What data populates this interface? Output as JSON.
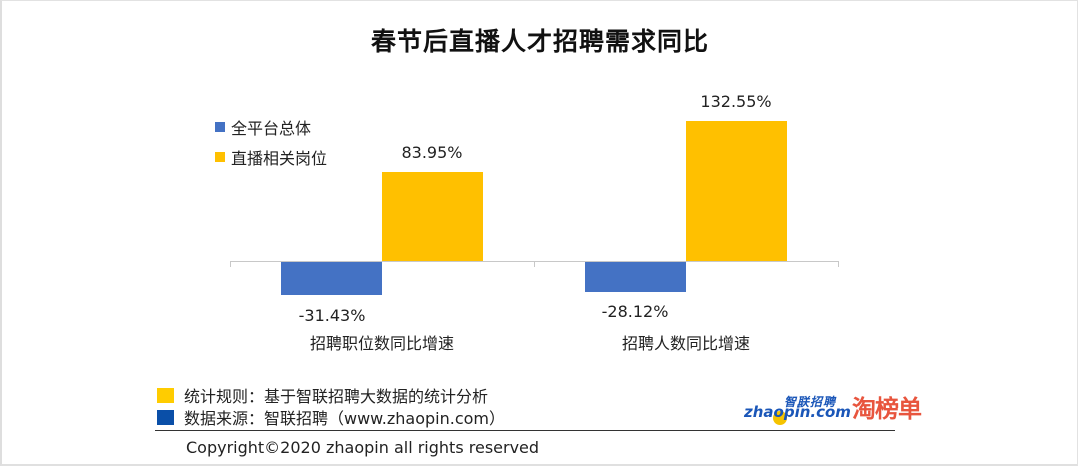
{
  "title": "春节后直播人才招聘需求同比",
  "legend": [
    {
      "label": "全平台总体",
      "color": "#4472c4"
    },
    {
      "label": "直播相关岗位",
      "color": "#ffc000"
    }
  ],
  "chart_data": {
    "type": "bar",
    "title": "春节后直播人才招聘需求同比",
    "categories": [
      "招聘职位数同比增速",
      "招聘人数同比增速"
    ],
    "series": [
      {
        "name": "全平台总体",
        "color": "#4472c4",
        "values": [
          -31.43,
          -28.12
        ],
        "labels": [
          "-31.43%",
          "-28.12%"
        ]
      },
      {
        "name": "直播相关岗位",
        "color": "#ffc000",
        "values": [
          83.95,
          132.55
        ],
        "labels": [
          "83.95%",
          "132.55%"
        ]
      }
    ],
    "xlabel": "",
    "ylabel": "",
    "unit": "%",
    "grid": false,
    "legend_position": "top-left",
    "ylim": [
      -35,
      140
    ]
  },
  "notes": [
    {
      "text": "统计规则：基于智联招聘大数据的统计分析",
      "color": "#ffcc00"
    },
    {
      "text": "数据来源：智联招聘（www.zhaopin.com）",
      "color": "#0a4fa8"
    }
  ],
  "copyright": "Copyright©2020 zhaopin all rights reserved",
  "logos": {
    "zhaopin_cn": "智联招聘",
    "zhaopin_en": "zhaopin.com",
    "taobang": "淘榜单"
  }
}
